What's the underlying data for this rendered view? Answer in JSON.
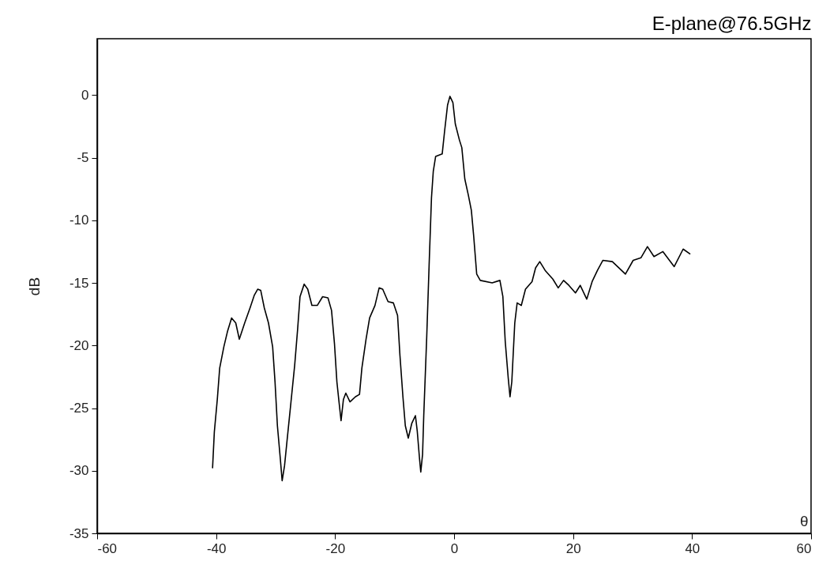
{
  "chart_data": {
    "type": "line",
    "title": "E-plane@76.5GHz",
    "xlabel": "θ",
    "ylabel": "dB",
    "xlim": [
      -60,
      60
    ],
    "xticks": [
      -60,
      -40,
      -20,
      0,
      20,
      40,
      60
    ],
    "ylim": [
      -35,
      4.5
    ],
    "yticks": [
      0,
      -5,
      -10,
      -15,
      -20,
      -25,
      -30,
      -35
    ],
    "grid": false,
    "marker": "none",
    "line_style": "solid",
    "series": [
      {
        "color": "#000000",
        "x": [
          -40.6,
          -40.3,
          -39.8,
          -39.4,
          -38.7,
          -38.1,
          -37.4,
          -36.7,
          -36.1,
          -35.2,
          -34.3,
          -33.6,
          -33.0,
          -32.5,
          -31.9,
          -31.2,
          -30.5,
          -30.1,
          -29.7,
          -29.2,
          -28.9,
          -28.5,
          -28.1,
          -27.5,
          -26.8,
          -26.3,
          -25.9,
          -25.2,
          -24.6,
          -23.9,
          -23.0,
          -22.1,
          -21.2,
          -20.6,
          -20.1,
          -19.7,
          -19.3,
          -19.0,
          -18.6,
          -18.2,
          -17.5,
          -16.6,
          -15.9,
          -15.5,
          -14.8,
          -14.2,
          -13.3,
          -12.6,
          -12.0,
          -11.1,
          -10.2,
          -9.5,
          -9.1,
          -8.6,
          -8.2,
          -7.7,
          -7.1,
          -6.5,
          -6.2,
          -5.8,
          -5.6,
          -5.3,
          -5.1,
          -4.6,
          -4.2,
          -3.8,
          -3.5,
          -3.1,
          -2.0,
          -1.6,
          -1.1,
          -0.7,
          -0.2,
          0.2,
          0.9,
          1.3,
          1.8,
          2.4,
          2.9,
          3.3,
          3.8,
          4.4,
          6.4,
          7.7,
          8.2,
          8.6,
          9.1,
          9.4,
          9.7,
          10.2,
          10.6,
          11.3,
          12.0,
          13.1,
          13.7,
          14.4,
          15.3,
          16.6,
          17.5,
          18.4,
          19.3,
          20.4,
          21.2,
          22.3,
          23.2,
          24.1,
          25.0,
          26.6,
          28.8,
          30.1,
          31.4,
          32.5,
          33.6,
          35.1,
          37.0,
          38.5,
          39.7
        ],
        "values": [
          -29.8,
          -26.9,
          -24.3,
          -21.8,
          -20.1,
          -18.9,
          -17.8,
          -18.2,
          -19.5,
          -18.2,
          -17.0,
          -16.0,
          -15.5,
          -15.6,
          -17.0,
          -18.2,
          -20.1,
          -22.9,
          -26.4,
          -29.1,
          -30.8,
          -29.6,
          -27.7,
          -24.9,
          -21.6,
          -18.7,
          -16.1,
          -15.1,
          -15.5,
          -16.8,
          -16.8,
          -16.1,
          -16.2,
          -17.2,
          -19.9,
          -22.9,
          -24.7,
          -26.0,
          -24.3,
          -23.8,
          -24.5,
          -24.1,
          -23.9,
          -21.8,
          -19.5,
          -17.8,
          -16.8,
          -15.4,
          -15.5,
          -16.5,
          -16.6,
          -17.6,
          -20.8,
          -24.1,
          -26.4,
          -27.4,
          -26.2,
          -25.6,
          -26.8,
          -29.1,
          -30.1,
          -28.7,
          -25.6,
          -19.3,
          -13.6,
          -8.2,
          -6.1,
          -4.9,
          -4.7,
          -2.9,
          -0.8,
          -0.1,
          -0.6,
          -2.3,
          -3.6,
          -4.2,
          -6.7,
          -8.0,
          -9.2,
          -11.3,
          -14.3,
          -14.8,
          -15.0,
          -14.8,
          -16.1,
          -19.7,
          -22.6,
          -24.1,
          -22.9,
          -18.2,
          -16.6,
          -16.8,
          -15.5,
          -14.9,
          -13.8,
          -13.3,
          -14.0,
          -14.7,
          -15.4,
          -14.8,
          -15.2,
          -15.8,
          -15.2,
          -16.3,
          -14.9,
          -14.0,
          -13.2,
          -13.3,
          -14.3,
          -13.2,
          -13.0,
          -12.1,
          -12.9,
          -12.5,
          -13.7,
          -12.3,
          -12.7
        ]
      }
    ]
  }
}
